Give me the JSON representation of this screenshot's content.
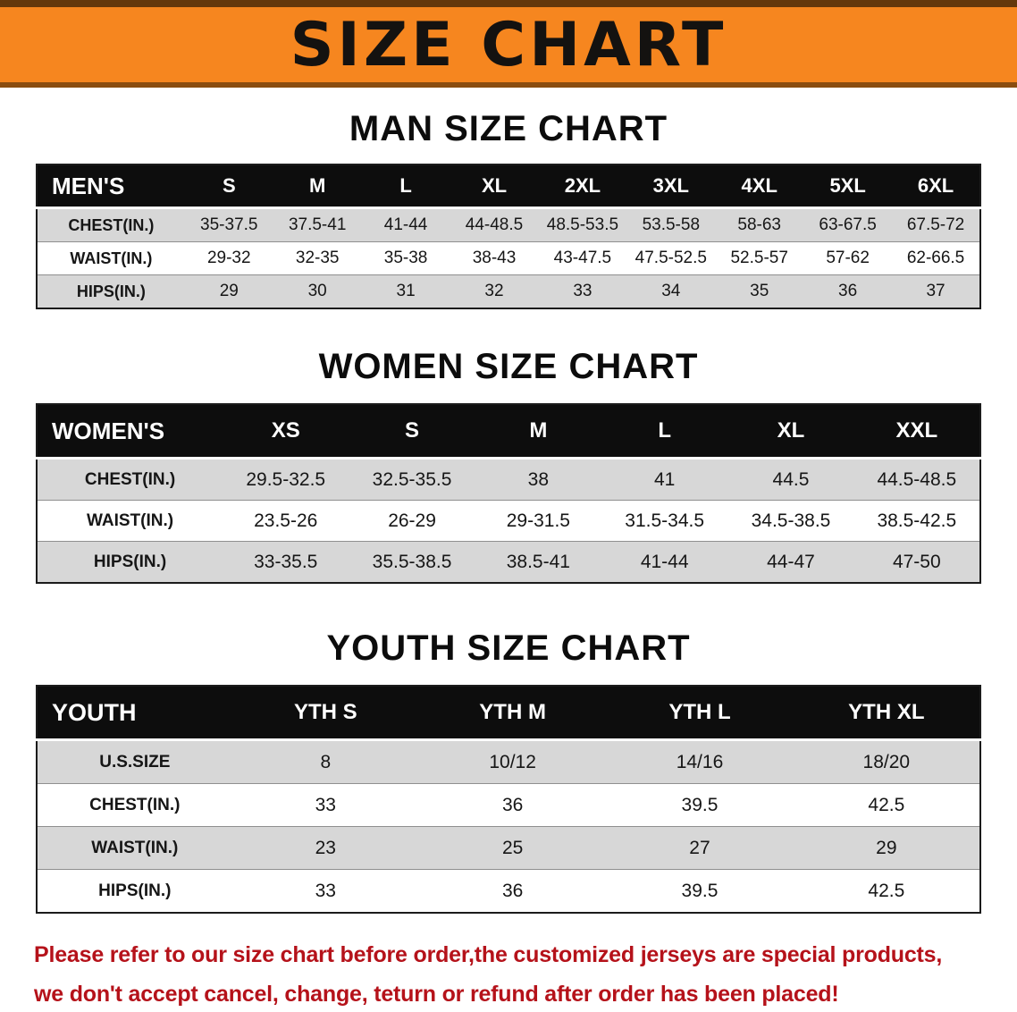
{
  "banner": {
    "title": "SIZE CHART"
  },
  "colors": {
    "banner_bg": "#f6861f",
    "table_header_bg": "#0d0d0d",
    "row_stripe": "#d7d7d7",
    "notice_red": "#b5121a"
  },
  "sections": [
    {
      "id": "men",
      "title": "MAN SIZE CHART",
      "header": [
        "MEN'S",
        "S",
        "M",
        "L",
        "XL",
        "2XL",
        "3XL",
        "4XL",
        "5XL",
        "6XL"
      ],
      "rows": [
        [
          "CHEST(IN.)",
          "35-37.5",
          "37.5-41",
          "41-44",
          "44-48.5",
          "48.5-53.5",
          "53.5-58",
          "58-63",
          "63-67.5",
          "67.5-72"
        ],
        [
          "WAIST(IN.)",
          "29-32",
          "32-35",
          "35-38",
          "38-43",
          "43-47.5",
          "47.5-52.5",
          "52.5-57",
          "57-62",
          "62-66.5"
        ],
        [
          "HIPS(IN.)",
          "29",
          "30",
          "31",
          "32",
          "33",
          "34",
          "35",
          "36",
          "37"
        ]
      ]
    },
    {
      "id": "women",
      "title": "WOMEN SIZE CHART",
      "header": [
        "WOMEN'S",
        "XS",
        "S",
        "M",
        "L",
        "XL",
        "XXL"
      ],
      "rows": [
        [
          "CHEST(IN.)",
          "29.5-32.5",
          "32.5-35.5",
          "38",
          "41",
          "44.5",
          "44.5-48.5"
        ],
        [
          "WAIST(IN.)",
          "23.5-26",
          "26-29",
          "29-31.5",
          "31.5-34.5",
          "34.5-38.5",
          "38.5-42.5"
        ],
        [
          "HIPS(IN.)",
          "33-35.5",
          "35.5-38.5",
          "38.5-41",
          "41-44",
          "44-47",
          "47-50"
        ]
      ]
    },
    {
      "id": "youth",
      "title": "YOUTH SIZE CHART",
      "header": [
        "YOUTH",
        "YTH S",
        "YTH M",
        "YTH L",
        "YTH XL"
      ],
      "rows": [
        [
          "U.S.SIZE",
          "8",
          "10/12",
          "14/16",
          "18/20"
        ],
        [
          "CHEST(IN.)",
          "33",
          "36",
          "39.5",
          "42.5"
        ],
        [
          "WAIST(IN.)",
          "23",
          "25",
          "27",
          "29"
        ],
        [
          "HIPS(IN.)",
          "33",
          "36",
          "39.5",
          "42.5"
        ]
      ]
    }
  ],
  "footer": {
    "line1": "Please refer to our size chart before order,the customized jerseys are special products,",
    "line2": "we don't accept cancel, change, teturn or refund after order has been placed!"
  }
}
